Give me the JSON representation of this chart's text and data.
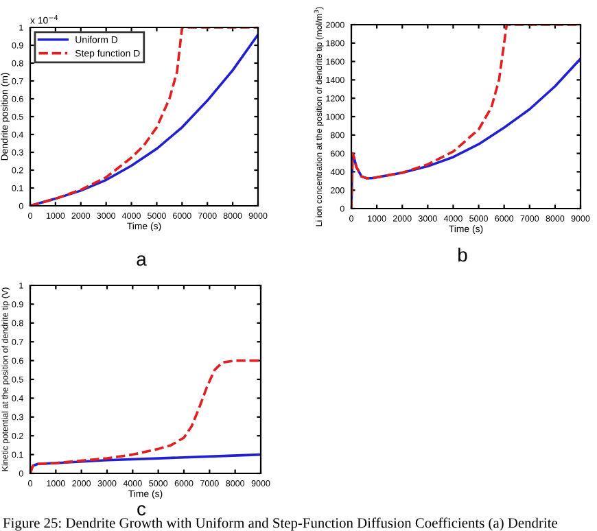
{
  "chart_data": [
    {
      "type": "line",
      "xlabel": "Time (s)",
      "ylabel": "Dendrite position (m)",
      "xlim": [
        0,
        9000
      ],
      "xticks": [
        0,
        1000,
        2000,
        3000,
        4000,
        5000,
        6000,
        7000,
        8000,
        9000
      ],
      "ylim": [
        0,
        1
      ],
      "yticks": [
        0,
        0.1,
        0.2,
        0.3,
        0.4,
        0.5,
        0.6,
        0.7,
        0.8,
        0.9,
        1
      ],
      "legend": "top left",
      "grid": false,
      "annotations": [
        "x 10$^{−4}$",
        "a"
      ],
      "series": [
        {
          "name": "Uniform D",
          "color": "#2020d0",
          "line_style": "solid",
          "x": [
            0,
            1000,
            2000,
            3000,
            4000,
            5000,
            6000,
            7000,
            8000,
            9000
          ],
          "values": [
            0,
            0.04,
            0.085,
            0.145,
            0.225,
            0.32,
            0.44,
            0.59,
            0.76,
            0.96
          ]
        },
        {
          "name": "Step function D",
          "color": "#e02020",
          "line_style": "dashed",
          "x": [
            0,
            1000,
            2000,
            3000,
            4000,
            4500,
            5000,
            5500,
            5800,
            6000,
            9000
          ],
          "values": [
            0,
            0.04,
            0.09,
            0.16,
            0.27,
            0.34,
            0.44,
            0.6,
            0.75,
            1.0,
            1.0
          ]
        }
      ]
    },
    {
      "type": "line",
      "xlabel": "Time (s)",
      "ylabel": "Li ion concentration at the position of dendrite tip (mol/m$^{3}$)",
      "xlim": [
        0,
        9000
      ],
      "xticks": [
        0,
        1000,
        2000,
        3000,
        4000,
        5000,
        6000,
        7000,
        8000,
        9000
      ],
      "ylim": [
        0,
        2000
      ],
      "yticks": [
        0,
        200,
        400,
        600,
        800,
        1000,
        1200,
        1400,
        1600,
        1800,
        2000
      ],
      "grid": false,
      "annotations": [
        "b"
      ],
      "series": [
        {
          "color": "#2020d0",
          "line_style": "solid",
          "x": [
            0,
            50,
            100,
            200,
            400,
            600,
            800,
            1000,
            2000,
            3000,
            4000,
            5000,
            6000,
            7000,
            8000,
            9000
          ],
          "values": [
            0,
            600,
            560,
            450,
            350,
            330,
            330,
            340,
            390,
            460,
            560,
            700,
            880,
            1080,
            1330,
            1630
          ]
        },
        {
          "color": "#e02020",
          "line_style": "dashed",
          "x": [
            0,
            50,
            100,
            200,
            400,
            600,
            800,
            1000,
            2000,
            3000,
            4000,
            5000,
            5500,
            5800,
            6000,
            6100,
            9000
          ],
          "values": [
            0,
            600,
            560,
            450,
            350,
            330,
            330,
            340,
            390,
            480,
            620,
            860,
            1100,
            1400,
            1800,
            2000,
            2000
          ]
        }
      ]
    },
    {
      "type": "line",
      "xlabel": "Time (s)",
      "ylabel": "Kinetic potential at the position of dendrite tip (V)",
      "xlim": [
        0,
        9000
      ],
      "xticks": [
        0,
        1000,
        2000,
        3000,
        4000,
        5000,
        6000,
        7000,
        8000,
        9000
      ],
      "ylim": [
        0,
        1
      ],
      "yticks": [
        0,
        0.1,
        0.2,
        0.3,
        0.4,
        0.5,
        0.6,
        0.7,
        0.8,
        0.9,
        1
      ],
      "grid": false,
      "annotations": [
        "c",
        "Figure 25: Dendrite Growth with Uniform and Step-Function Diffusion Coefficients (a) Dendrite"
      ],
      "series": [
        {
          "color": "#2020d0",
          "line_style": "solid",
          "x": [
            0,
            100,
            300,
            1000,
            3000,
            5000,
            7000,
            9000
          ],
          "values": [
            0,
            0.04,
            0.05,
            0.055,
            0.07,
            0.08,
            0.09,
            0.1
          ]
        },
        {
          "color": "#e02020",
          "line_style": "dashed",
          "x": [
            0,
            100,
            300,
            1000,
            3000,
            4000,
            5000,
            5500,
            6000,
            6300,
            6600,
            6900,
            7200,
            7500,
            8000,
            9000
          ],
          "values": [
            0,
            0.04,
            0.05,
            0.055,
            0.08,
            0.1,
            0.13,
            0.15,
            0.19,
            0.25,
            0.35,
            0.46,
            0.55,
            0.59,
            0.6,
            0.6
          ]
        }
      ]
    }
  ]
}
